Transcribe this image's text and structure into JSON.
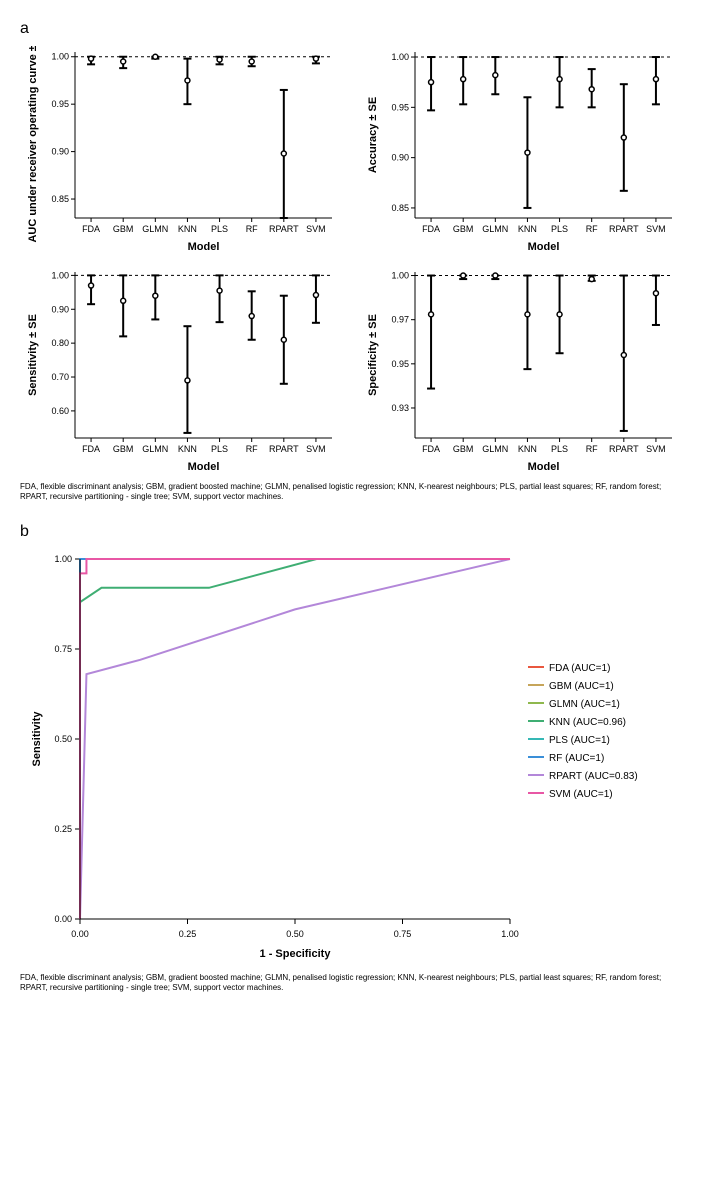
{
  "panel_a": {
    "label": "a",
    "models": [
      "FDA",
      "GBM",
      "GLMN",
      "KNN",
      "PLS",
      "RF",
      "RPART",
      "SVM"
    ],
    "x_axis_title": "Model",
    "charts": [
      {
        "y_title": "AUC under receiver operating curve ± SE",
        "ylim": [
          0.83,
          1.005
        ],
        "yticks": [
          0.85,
          0.9,
          0.95,
          1.0
        ],
        "ref_line": 1.0,
        "data": [
          {
            "mean": 0.998,
            "low": 0.992,
            "high": 1.0
          },
          {
            "mean": 0.995,
            "low": 0.988,
            "high": 1.0
          },
          {
            "mean": 1.0,
            "low": 0.998,
            "high": 1.0
          },
          {
            "mean": 0.975,
            "low": 0.95,
            "high": 0.998
          },
          {
            "mean": 0.997,
            "low": 0.992,
            "high": 1.0
          },
          {
            "mean": 0.995,
            "low": 0.99,
            "high": 1.0
          },
          {
            "mean": 0.898,
            "low": 0.83,
            "high": 0.965
          },
          {
            "mean": 0.998,
            "low": 0.993,
            "high": 1.0
          }
        ]
      },
      {
        "y_title": "Accuracy ± SE",
        "ylim": [
          0.84,
          1.005
        ],
        "yticks": [
          0.85,
          0.9,
          0.95,
          1.0
        ],
        "ref_line": 1.0,
        "data": [
          {
            "mean": 0.975,
            "low": 0.947,
            "high": 1.0
          },
          {
            "mean": 0.978,
            "low": 0.953,
            "high": 1.0
          },
          {
            "mean": 0.982,
            "low": 0.963,
            "high": 1.0
          },
          {
            "mean": 0.905,
            "low": 0.85,
            "high": 0.96
          },
          {
            "mean": 0.978,
            "low": 0.95,
            "high": 1.0
          },
          {
            "mean": 0.968,
            "low": 0.95,
            "high": 0.988
          },
          {
            "mean": 0.92,
            "low": 0.867,
            "high": 0.973
          },
          {
            "mean": 0.978,
            "low": 0.953,
            "high": 1.0
          }
        ]
      },
      {
        "y_title": "Sensitivity ± SE",
        "ylim": [
          0.52,
          1.01
        ],
        "yticks": [
          0.6,
          0.7,
          0.8,
          0.9,
          1.0
        ],
        "ref_line": 1.0,
        "data": [
          {
            "mean": 0.97,
            "low": 0.915,
            "high": 1.0
          },
          {
            "mean": 0.925,
            "low": 0.82,
            "high": 1.0
          },
          {
            "mean": 0.94,
            "low": 0.87,
            "high": 1.0
          },
          {
            "mean": 0.69,
            "low": 0.535,
            "high": 0.85
          },
          {
            "mean": 0.955,
            "low": 0.862,
            "high": 1.0
          },
          {
            "mean": 0.88,
            "low": 0.81,
            "high": 0.953
          },
          {
            "mean": 0.81,
            "low": 0.68,
            "high": 0.94
          },
          {
            "mean": 0.942,
            "low": 0.86,
            "high": 1.0
          }
        ]
      },
      {
        "y_title": "Specificity ± SE",
        "ylim": [
          0.908,
          1.002
        ],
        "yticks": [
          0.925,
          0.95,
          0.975,
          1.0
        ],
        "ref_line": 1.0,
        "data": [
          {
            "mean": 0.978,
            "low": 0.936,
            "high": 1.0
          },
          {
            "mean": 1.0,
            "low": 0.998,
            "high": 1.0
          },
          {
            "mean": 1.0,
            "low": 0.998,
            "high": 1.0
          },
          {
            "mean": 0.978,
            "low": 0.947,
            "high": 1.0
          },
          {
            "mean": 0.978,
            "low": 0.956,
            "high": 1.0
          },
          {
            "mean": 0.998,
            "low": 0.997,
            "high": 1.0
          },
          {
            "mean": 0.955,
            "low": 0.912,
            "high": 1.0
          },
          {
            "mean": 0.99,
            "low": 0.972,
            "high": 1.0
          }
        ]
      }
    ],
    "caption": "FDA, flexible discriminant analysis; GBM, gradient boosted machine; GLMN, penalised logistic regression; KNN, K-nearest neighbours; PLS, partial least squares; RF, random forest; RPART, recursive partitioning - single tree; SVM, support vector machines."
  },
  "panel_b": {
    "label": "b",
    "x_title": "1 - Specificity",
    "y_title": "Sensitivity",
    "xlim": [
      0,
      1.0
    ],
    "ylim": [
      0,
      1.0
    ],
    "xticks": [
      0.0,
      0.25,
      0.5,
      0.75,
      1.0
    ],
    "yticks": [
      0.0,
      0.25,
      0.5,
      0.75,
      1.0
    ],
    "legend": [
      {
        "label": "FDA (AUC=1)",
        "color": "#e9573f"
      },
      {
        "label": "GBM (AUC=1)",
        "color": "#c6a55a"
      },
      {
        "label": "GLMN (AUC=1)",
        "color": "#8fb84e"
      },
      {
        "label": "KNN (AUC=0.96)",
        "color": "#3fae73"
      },
      {
        "label": "PLS (AUC=1)",
        "color": "#35b8b5"
      },
      {
        "label": "RF (AUC=1)",
        "color": "#3a8fd8"
      },
      {
        "label": "RPART (AUC=0.83)",
        "color": "#b387d9"
      },
      {
        "label": "SVM (AUC=1)",
        "color": "#e857a5"
      }
    ],
    "curves": [
      {
        "color": "#e9573f",
        "pts": [
          [
            0,
            0
          ],
          [
            0,
            1
          ],
          [
            1,
            1
          ]
        ]
      },
      {
        "color": "#c6a55a",
        "pts": [
          [
            0,
            0
          ],
          [
            0,
            1
          ],
          [
            1,
            1
          ]
        ]
      },
      {
        "color": "#8fb84e",
        "pts": [
          [
            0,
            0
          ],
          [
            0,
            1
          ],
          [
            1,
            1
          ]
        ]
      },
      {
        "color": "#3fae73",
        "pts": [
          [
            0,
            0
          ],
          [
            0,
            0.88
          ],
          [
            0.05,
            0.92
          ],
          [
            0.3,
            0.92
          ],
          [
            0.55,
            1.0
          ],
          [
            1,
            1
          ]
        ]
      },
      {
        "color": "#35b8b5",
        "pts": [
          [
            0,
            0
          ],
          [
            0,
            1
          ],
          [
            1,
            1
          ]
        ]
      },
      {
        "color": "#3a8fd8",
        "pts": [
          [
            0,
            0
          ],
          [
            0,
            1
          ],
          [
            1,
            1
          ]
        ]
      },
      {
        "color": "#b387d9",
        "pts": [
          [
            0,
            0
          ],
          [
            0.015,
            0.68
          ],
          [
            0.14,
            0.72
          ],
          [
            0.5,
            0.86
          ],
          [
            1,
            1
          ]
        ]
      },
      {
        "color": "#e857a5",
        "pts": [
          [
            0,
            0
          ],
          [
            0,
            0.96
          ],
          [
            0.015,
            0.96
          ],
          [
            0.015,
            1
          ],
          [
            1,
            1
          ]
        ]
      }
    ],
    "caption": "FDA, flexible discriminant analysis; GBM, gradient boosted machine; GLMN, penalised logistic regression; KNN, K-nearest neighbours; PLS, partial least squares; RF, random forest; RPART, recursive partitioning - single tree; SVM, support vector machines."
  },
  "colors": {
    "background": "#ffffff",
    "text": "#000000",
    "axis": "#000000"
  },
  "layout": {
    "small_chart_w": 320,
    "small_chart_h": 210,
    "roc_w": 660,
    "roc_h": 420,
    "font_size_tick": 9,
    "font_size_axis": 11
  }
}
